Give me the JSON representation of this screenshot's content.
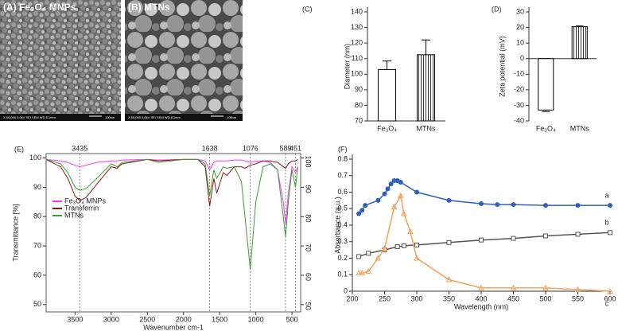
{
  "images": [
    {
      "label": "(A) Fe₃O₄ MNPs",
      "info": "X 50,000  5.0kV  SEI  SEM  WD 8.1mm",
      "scale": "100nm"
    },
    {
      "label": "(B) MTNs",
      "info": "X 50,000  5.0kV  SEI  SEM  WD 8.1mm",
      "scale": "100nm"
    }
  ],
  "chart_data": [
    {
      "type": "bar",
      "title": "(C)",
      "y_label": "Diameter (nm)",
      "categories": [
        "Fe₃O₄",
        "MTNs"
      ],
      "values": [
        103,
        112.5
      ],
      "errors": [
        5.5,
        9.5
      ],
      "fills": [
        "open",
        "vertical-lines"
      ],
      "color": "#000000",
      "ylim": [
        70,
        140
      ],
      "yticks": [
        70,
        80,
        90,
        100,
        110,
        120,
        130,
        140
      ]
    },
    {
      "type": "bar",
      "title": "(D)",
      "y_label": "Zeta potential (mV)",
      "categories": [
        "Fe₃O₄",
        "MTNs"
      ],
      "values": [
        -33,
        20.5
      ],
      "errors": [
        1,
        0.5
      ],
      "fills": [
        "open",
        "vertical-lines"
      ],
      "color": "#000000",
      "ylim": [
        -40,
        30
      ],
      "yticks": [
        -40,
        -30,
        -20,
        -10,
        0,
        10,
        20,
        30
      ]
    },
    {
      "type": "line",
      "title": "(E)",
      "x_label": "Wavenumber cm-1",
      "y_label": "Transmittance [%]",
      "x": [
        3900,
        3700,
        3600,
        3500,
        3435,
        3350,
        3200,
        3000,
        2920,
        2850,
        2500,
        2350,
        2000,
        1800,
        1700,
        1638,
        1580,
        1540,
        1450,
        1400,
        1300,
        1200,
        1150,
        1076,
        1000,
        900,
        800,
        700,
        620,
        589,
        550,
        500,
        451,
        420
      ],
      "series": [
        {
          "name": "Fe₃O₄ MNPs",
          "color": "#ff33ff",
          "values": [
            99.5,
            99,
            98.5,
            97.5,
            97,
            97.5,
            98.5,
            99,
            99,
            99.3,
            99.5,
            99.3,
            99.5,
            99.5,
            99,
            96,
            98.5,
            99,
            99,
            99,
            99.3,
            99.3,
            99,
            98.5,
            99,
            99,
            98.5,
            96,
            85,
            77.5,
            88,
            97,
            95,
            97
          ]
        },
        {
          "name": "Transferrin",
          "color": "#8b1a1a",
          "values": [
            99.5,
            97,
            93,
            87,
            85.5,
            86.5,
            91,
            97,
            96.5,
            98,
            99.5,
            99,
            99.5,
            99.5,
            97,
            83.5,
            93,
            88,
            95,
            94,
            97,
            97,
            96.5,
            97.5,
            98,
            99,
            99,
            98.5,
            97,
            96.5,
            98,
            99,
            99,
            99.5
          ]
        },
        {
          "name": "MTNs",
          "color": "#3aa02e",
          "values": [
            99.5,
            98,
            95,
            90,
            89,
            89.5,
            93,
            98,
            97,
            98.5,
            99.5,
            98.5,
            99.5,
            99.5,
            98,
            87,
            96,
            93,
            97,
            96.5,
            97,
            92,
            80,
            62,
            85,
            97,
            98,
            96,
            80,
            73,
            85,
            96,
            90,
            97
          ]
        }
      ],
      "xlim": [
        3900,
        380
      ],
      "xticks": [
        3500,
        3000,
        2500,
        2000,
        1500,
        1000,
        500
      ],
      "ylim": [
        47.5,
        101.5
      ],
      "yticks": [
        50,
        60,
        70,
        80,
        90,
        100
      ],
      "peaks": [
        3435,
        1638,
        1076,
        589,
        451
      ],
      "frame": true,
      "right_axis": true,
      "legend": "upper left"
    },
    {
      "type": "line",
      "title": "(F)",
      "x_label": "Wavelength (nm)",
      "y_label": "Absorbance (a.u.)",
      "series": [
        {
          "name": "a",
          "color": "#2e5fbf",
          "marker": "filled-circle",
          "x": [
            210,
            215,
            220,
            240,
            250,
            255,
            260,
            265,
            270,
            275,
            300,
            350,
            400,
            425,
            450,
            500,
            550,
            600
          ],
          "values": [
            0.47,
            0.49,
            0.52,
            0.55,
            0.59,
            0.62,
            0.65,
            0.67,
            0.67,
            0.66,
            0.6,
            0.55,
            0.53,
            0.525,
            0.525,
            0.52,
            0.52,
            0.52
          ]
        },
        {
          "name": "b",
          "color": "#555555",
          "marker": "open-square",
          "x": [
            210,
            225,
            250,
            270,
            280,
            300,
            350,
            400,
            450,
            500,
            550,
            600
          ],
          "values": [
            0.21,
            0.23,
            0.25,
            0.27,
            0.275,
            0.28,
            0.295,
            0.31,
            0.32,
            0.335,
            0.345,
            0.355
          ]
        },
        {
          "name": "c",
          "color": "#f4a05a",
          "marker": "open-triangle",
          "x": [
            210,
            215,
            225,
            240,
            250,
            265,
            275,
            280,
            290,
            300,
            350,
            400,
            450,
            500,
            550,
            600
          ],
          "values": [
            0.11,
            0.11,
            0.12,
            0.2,
            0.26,
            0.51,
            0.58,
            0.47,
            0.36,
            0.2,
            0.07,
            0.02,
            0.02,
            0.02,
            0.01,
            0
          ]
        }
      ],
      "xlim": [
        200,
        600
      ],
      "xticks": [
        200,
        250,
        300,
        350,
        400,
        450,
        500,
        550,
        600
      ],
      "ylim": [
        0,
        0.8
      ],
      "yticks": [
        0,
        0.1,
        0.2,
        0.3,
        0.4,
        0.5,
        0.6,
        0.7,
        0.8
      ],
      "frame": false,
      "legend": "line-end"
    }
  ]
}
